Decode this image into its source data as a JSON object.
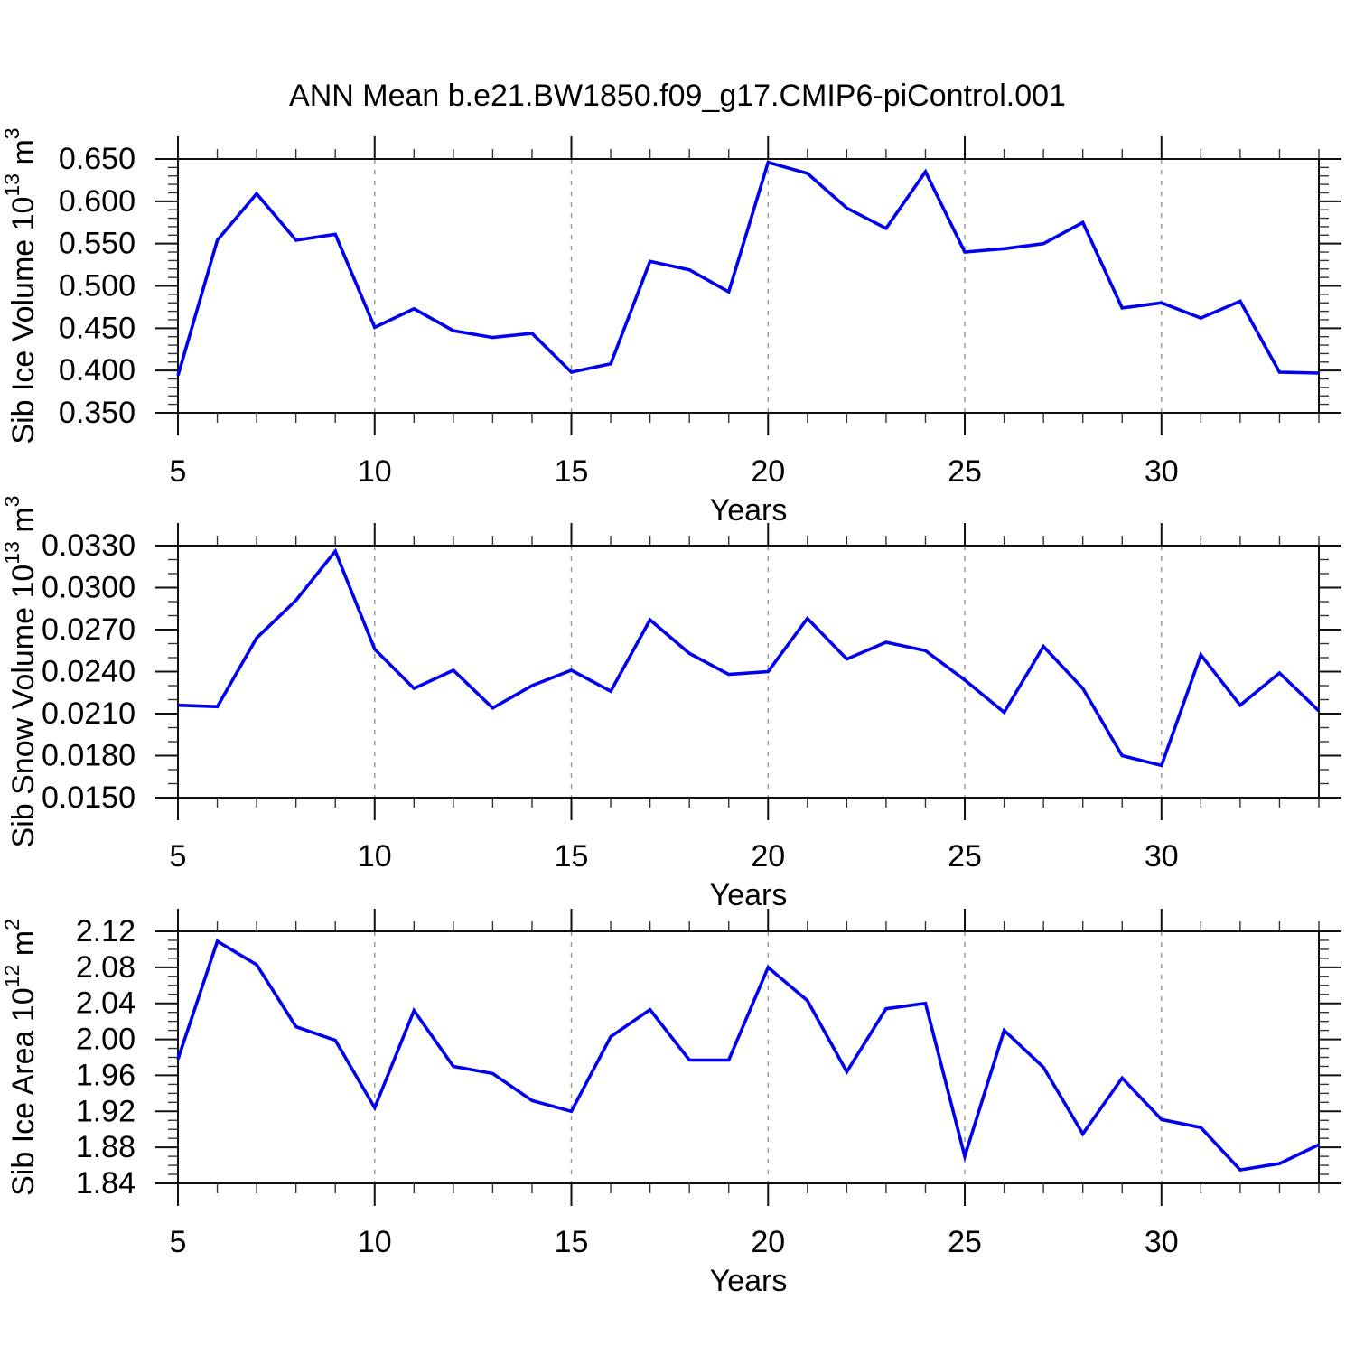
{
  "title": "ANN Mean b.e21.BW1850.f09_g17.CMIP6-piControl.001",
  "colors": {
    "line": "#0000EE",
    "grid": "#999999",
    "axis": "#111111",
    "minor_tick": "#333333",
    "text": "#000000",
    "background": "#FFFFFF"
  },
  "chart_data": [
    {
      "type": "line",
      "panel": "sib-ice-volume",
      "ylabel": "Sib Ice Volume 10^13 m^3",
      "ylabel_parts": {
        "prefix": "Sib Ice Volume 10",
        "exp": "13",
        "unit": " m",
        "unit_exp": "3"
      },
      "xlabel": "Years",
      "x": [
        5,
        6,
        7,
        8,
        9,
        10,
        11,
        12,
        13,
        14,
        15,
        16,
        17,
        18,
        19,
        20,
        21,
        22,
        23,
        24,
        25,
        26,
        27,
        28,
        29,
        30,
        31,
        32,
        33,
        34
      ],
      "values": [
        0.394,
        0.554,
        0.609,
        0.554,
        0.561,
        0.451,
        0.473,
        0.447,
        0.439,
        0.444,
        0.398,
        0.408,
        0.529,
        0.519,
        0.493,
        0.646,
        0.633,
        0.592,
        0.568,
        0.635,
        0.54,
        0.544,
        0.55,
        0.575,
        0.474,
        0.48,
        0.462,
        0.482,
        0.398,
        0.397
      ],
      "xlim": [
        5,
        34
      ],
      "ylim": [
        0.35,
        0.65
      ],
      "yticks": [
        0.65,
        0.6,
        0.55,
        0.5,
        0.45,
        0.4,
        0.35
      ],
      "ytick_labels": [
        "0.650",
        "0.600",
        "0.550",
        "0.500",
        "0.450",
        "0.400",
        "0.350"
      ],
      "y_minor_step": 0.01,
      "xticks": [
        5,
        10,
        15,
        20,
        25,
        30
      ],
      "xtick_labels": [
        "5",
        "10",
        "15",
        "20",
        "25",
        "30"
      ],
      "x_minor_step": 1,
      "grid_x": [
        10,
        15,
        20,
        25,
        30
      ],
      "grid": "dashed-vertical",
      "legend": "none"
    },
    {
      "type": "line",
      "panel": "sib-snow-volume",
      "ylabel": "Sib Snow Volume 10^13 m^3",
      "ylabel_parts": {
        "prefix": "Sib Snow Volume 10",
        "exp": "13",
        "unit": " m",
        "unit_exp": "3"
      },
      "xlabel": "Years",
      "x": [
        5,
        6,
        7,
        8,
        9,
        10,
        11,
        12,
        13,
        14,
        15,
        16,
        17,
        18,
        19,
        20,
        21,
        22,
        23,
        24,
        25,
        26,
        27,
        28,
        29,
        30,
        31,
        32,
        33,
        34
      ],
      "values": [
        0.0216,
        0.0215,
        0.0264,
        0.0291,
        0.0326,
        0.0256,
        0.0228,
        0.0241,
        0.0214,
        0.023,
        0.0241,
        0.0226,
        0.0277,
        0.0253,
        0.0238,
        0.024,
        0.0278,
        0.0249,
        0.0261,
        0.0255,
        0.0234,
        0.0211,
        0.0258,
        0.0228,
        0.018,
        0.0173,
        0.0252,
        0.0216,
        0.0239,
        0.0212
      ],
      "xlim": [
        5,
        34
      ],
      "ylim": [
        0.015,
        0.033
      ],
      "yticks": [
        0.033,
        0.03,
        0.027,
        0.024,
        0.021,
        0.018,
        0.015
      ],
      "ytick_labels": [
        "0.0330",
        "0.0300",
        "0.0270",
        "0.0240",
        "0.0210",
        "0.0180",
        "0.0150"
      ],
      "y_minor_step": 0.001,
      "xticks": [
        5,
        10,
        15,
        20,
        25,
        30
      ],
      "xtick_labels": [
        "5",
        "10",
        "15",
        "20",
        "25",
        "30"
      ],
      "x_minor_step": 1,
      "grid_x": [
        10,
        15,
        20,
        25,
        30
      ],
      "grid": "dashed-vertical",
      "legend": "none"
    },
    {
      "type": "line",
      "panel": "sib-ice-area",
      "ylabel": "Sib Ice Area 10^12 m^2",
      "ylabel_parts": {
        "prefix": "Sib Ice Area 10",
        "exp": "12",
        "unit": " m",
        "unit_exp": "2"
      },
      "xlabel": "Years",
      "x": [
        5,
        6,
        7,
        8,
        9,
        10,
        11,
        12,
        13,
        14,
        15,
        16,
        17,
        18,
        19,
        20,
        21,
        22,
        23,
        24,
        25,
        26,
        27,
        28,
        29,
        30,
        31,
        32,
        33,
        34
      ],
      "values": [
        1.978,
        2.109,
        2.083,
        2.014,
        1.999,
        1.924,
        2.032,
        1.97,
        1.962,
        1.932,
        1.92,
        2.003,
        2.033,
        1.977,
        1.977,
        2.08,
        2.043,
        1.964,
        2.034,
        2.04,
        1.87,
        2.01,
        1.969,
        1.895,
        1.957,
        1.911,
        1.902,
        1.855,
        1.862,
        1.883
      ],
      "xlim": [
        5,
        34
      ],
      "ylim": [
        1.84,
        2.12
      ],
      "yticks": [
        2.12,
        2.08,
        2.04,
        2.0,
        1.96,
        1.92,
        1.88,
        1.84
      ],
      "ytick_labels": [
        "2.12",
        "2.08",
        "2.04",
        "2.00",
        "1.96",
        "1.92",
        "1.88",
        "1.84"
      ],
      "y_minor_step": 0.01,
      "xticks": [
        5,
        10,
        15,
        20,
        25,
        30
      ],
      "xtick_labels": [
        "5",
        "10",
        "15",
        "20",
        "25",
        "30"
      ],
      "x_minor_step": 1,
      "grid_x": [
        10,
        15,
        20,
        25,
        30
      ],
      "grid": "dashed-vertical",
      "legend": "none"
    }
  ]
}
